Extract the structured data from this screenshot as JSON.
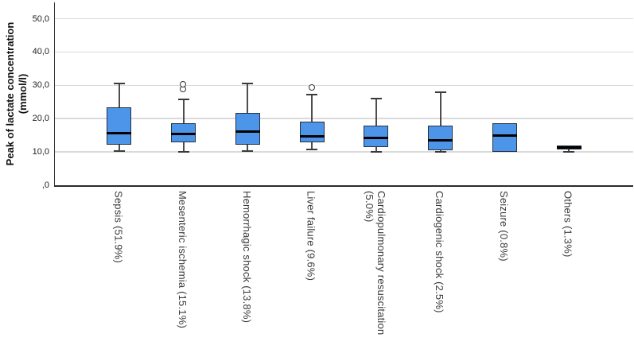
{
  "chart_data": {
    "type": "box",
    "title": "",
    "xlabel": "",
    "ylabel": "Peak of lactate concentration\n(mmol/l)",
    "ylim": [
      0,
      55
    ],
    "grid": "horizontal",
    "legend": "none",
    "decimal_separator": ",",
    "yticks": [
      {
        "value": 50,
        "label": "50,0"
      },
      {
        "value": 40,
        "label": "40,0"
      },
      {
        "value": 30,
        "label": "30,0"
      },
      {
        "value": 20,
        "label": "20,0"
      },
      {
        "value": 10,
        "label": "10,0"
      },
      {
        "value": 0,
        "label": ",0"
      }
    ],
    "gridline_values": [
      10,
      20,
      30,
      40,
      50
    ],
    "categories": [
      "Sepsis (51.9%)",
      "Mesenteric ischemia (15.1%)",
      "Hemorrhagic shock (13.8%)",
      "Liver failure (9.6%)",
      "Cardiopulmonary resuscitation (5.0%)",
      "Cardiogenic shock (2.5%)",
      "Seizure (0.8%)",
      "Others (1.3%)"
    ],
    "series": [
      {
        "label": "Sepsis (51.9%)",
        "label_lines": [
          "Sepsis (51.9%)"
        ],
        "min": 10.3,
        "q1": 12.1,
        "median": 15.6,
        "q3": 23.3,
        "max": 30.6,
        "outliers": []
      },
      {
        "label": "Mesenteric ischemia (15.1%)",
        "label_lines": [
          "Mesenteric ischemia (15.1%)"
        ],
        "min": 10.0,
        "q1": 12.8,
        "median": 15.3,
        "q3": 18.6,
        "max": 25.8,
        "outliers": [
          28.8,
          30.1
        ]
      },
      {
        "label": "Hemorrhagic shock (13.8%)",
        "label_lines": [
          "Hemorrhagic shock (13.8%)"
        ],
        "min": 10.3,
        "q1": 12.2,
        "median": 16.2,
        "q3": 21.8,
        "max": 30.5,
        "outliers": []
      },
      {
        "label": "Liver failure (9.6%)",
        "label_lines": [
          "Liver failure (9.6%)"
        ],
        "min": 10.8,
        "q1": 12.9,
        "median": 14.6,
        "q3": 19.0,
        "max": 27.1,
        "outliers": [
          29.2
        ]
      },
      {
        "label": "Cardiopulmonary resuscitation (5.0%)",
        "label_lines": [
          "Cardiopulmonary resuscitation",
          "(5.0%)"
        ],
        "min": 10.0,
        "q1": 11.4,
        "median": 14.1,
        "q3": 18.0,
        "max": 25.9,
        "outliers": []
      },
      {
        "label": "Cardiogenic shock (2.5%)",
        "label_lines": [
          "Cardiogenic shock (2.5%)"
        ],
        "min": 10.1,
        "q1": 10.4,
        "median": 13.4,
        "q3": 17.8,
        "max": 28.0,
        "outliers": []
      },
      {
        "label": "Seizure (0.8%)",
        "label_lines": [
          "Seizure (0.8%)"
        ],
        "min": 10.1,
        "q1": 10.1,
        "median": 14.8,
        "q3": 18.6,
        "max": 18.6,
        "outliers": []
      },
      {
        "label": "Others (1.3%)",
        "label_lines": [
          "Others (1.3%)"
        ],
        "min": 10.1,
        "q1": 10.7,
        "median": 11.3,
        "q3": 11.9,
        "max": 11.9,
        "outliers": []
      }
    ]
  },
  "colors": {
    "box_fill": "#4d95e8",
    "box_border": "#24313f",
    "median": "#000000",
    "whisker": "#4d4d4d",
    "gridline": "#dadada",
    "axis": "#2b2b2b",
    "outlier_border": "#333333",
    "background": "#ffffff"
  }
}
